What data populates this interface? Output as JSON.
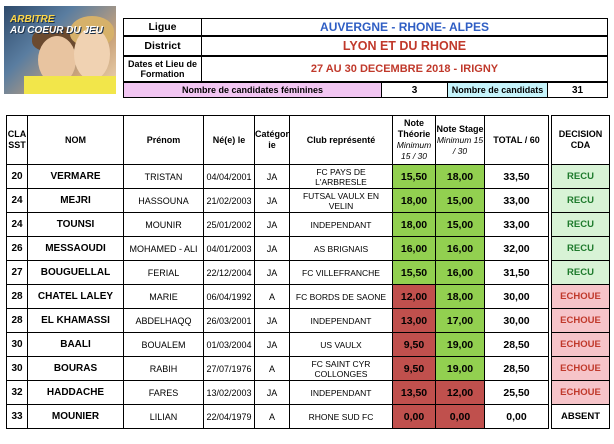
{
  "logo": {
    "line1": "ARBITRE",
    "line2": "AU COEUR DU JEU"
  },
  "header": {
    "ligue_label": "Ligue",
    "ligue_value": "AUVERGNE - RHONE- ALPES",
    "district_label": "District",
    "district_value": "LYON ET DU RHONE",
    "dates_label": "Dates et Lieu de Formation",
    "dates_value": "27 AU 30 DECEMBRE 2018 - IRIGNY",
    "fem_label": "Nombre de candidates féminines",
    "fem_value": "3",
    "total_label": "Nombre de candidats",
    "total_value": "31"
  },
  "columns": {
    "class": "CLA SST",
    "nom": "NOM",
    "prenom": "Prénom",
    "ne": "Né(e) le",
    "categorie": "Catégor ie",
    "club": "Club représenté",
    "theorie": "Note Théorie",
    "theorie_sub": "Minimum 15 / 30",
    "stage": "Note Stage",
    "stage_sub": "Minimum 15 / 30",
    "total": "TOTAL / 60",
    "decision": "DECISION CDA"
  },
  "colors": {
    "green_note": "#92d050",
    "red_note": "#c0504d",
    "green_dec": "#d8f3d6",
    "red_dec": "#f6c4c9",
    "recu_text": "#1e7a2c",
    "echoue_text": "#c0392b"
  },
  "rows": [
    {
      "class": "20",
      "nom": "VERMARE",
      "prenom": "TRISTAN",
      "ne": "04/04/2001",
      "cat": "JA",
      "club": "FC PAYS DE L'ARBRESLE",
      "theorie": "15,50",
      "stage": "18,00",
      "total": "33,50",
      "decision": "RECU",
      "t_ok": true,
      "s_ok": true
    },
    {
      "class": "24",
      "nom": "MEJRI",
      "prenom": "HASSOUNA",
      "ne": "21/02/2003",
      "cat": "JA",
      "club": "FUTSAL VAULX EN VELIN",
      "theorie": "18,00",
      "stage": "15,00",
      "total": "33,00",
      "decision": "RECU",
      "t_ok": true,
      "s_ok": true
    },
    {
      "class": "24",
      "nom": "TOUNSI",
      "prenom": "MOUNIR",
      "ne": "25/01/2002",
      "cat": "JA",
      "club": "INDEPENDANT",
      "theorie": "18,00",
      "stage": "15,00",
      "total": "33,00",
      "decision": "RECU",
      "t_ok": true,
      "s_ok": true
    },
    {
      "class": "26",
      "nom": "MESSAOUDI",
      "prenom": "MOHAMED - ALI",
      "ne": "04/01/2003",
      "cat": "JA",
      "club": "AS BRIGNAIS",
      "theorie": "16,00",
      "stage": "16,00",
      "total": "32,00",
      "decision": "RECU",
      "t_ok": true,
      "s_ok": true
    },
    {
      "class": "27",
      "nom": "BOUGUELLAL",
      "prenom": "FERIAL",
      "ne": "22/12/2004",
      "cat": "JA",
      "club": "FC VILLEFRANCHE",
      "theorie": "15,50",
      "stage": "16,00",
      "total": "31,50",
      "decision": "RECU",
      "t_ok": true,
      "s_ok": true
    },
    {
      "class": "28",
      "nom": "CHATEL LALEY",
      "prenom": "MARIE",
      "ne": "06/04/1992",
      "cat": "A",
      "club": "FC BORDS DE SAONE",
      "theorie": "12,00",
      "stage": "18,00",
      "total": "30,00",
      "decision": "ECHOUE",
      "t_ok": false,
      "s_ok": true
    },
    {
      "class": "28",
      "nom": "EL KHAMASSI",
      "prenom": "ABDELHAQQ",
      "ne": "26/03/2001",
      "cat": "JA",
      "club": "INDEPENDANT",
      "theorie": "13,00",
      "stage": "17,00",
      "total": "30,00",
      "decision": "ECHOUE",
      "t_ok": false,
      "s_ok": true
    },
    {
      "class": "30",
      "nom": "BAALI",
      "prenom": "BOUALEM",
      "ne": "01/03/2004",
      "cat": "JA",
      "club": "US VAULX",
      "theorie": "9,50",
      "stage": "19,00",
      "total": "28,50",
      "decision": "ECHOUE",
      "t_ok": false,
      "s_ok": true
    },
    {
      "class": "30",
      "nom": "BOURAS",
      "prenom": "RABIH",
      "ne": "27/07/1976",
      "cat": "A",
      "club": "FC SAINT CYR COLLONGES",
      "theorie": "9,50",
      "stage": "19,00",
      "total": "28,50",
      "decision": "ECHOUE",
      "t_ok": false,
      "s_ok": true
    },
    {
      "class": "32",
      "nom": "HADDACHE",
      "prenom": "FARES",
      "ne": "13/02/2003",
      "cat": "JA",
      "club": "INDEPENDANT",
      "theorie": "13,50",
      "stage": "12,00",
      "total": "25,50",
      "decision": "ECHOUE",
      "t_ok": false,
      "s_ok": false
    },
    {
      "class": "33",
      "nom": "MOUNIER",
      "prenom": "LILIAN",
      "ne": "22/04/1979",
      "cat": "A",
      "club": "RHONE SUD FC",
      "theorie": "0,00",
      "stage": "0,00",
      "total": "0,00",
      "decision": "ABSENT",
      "t_ok": false,
      "s_ok": false
    }
  ]
}
